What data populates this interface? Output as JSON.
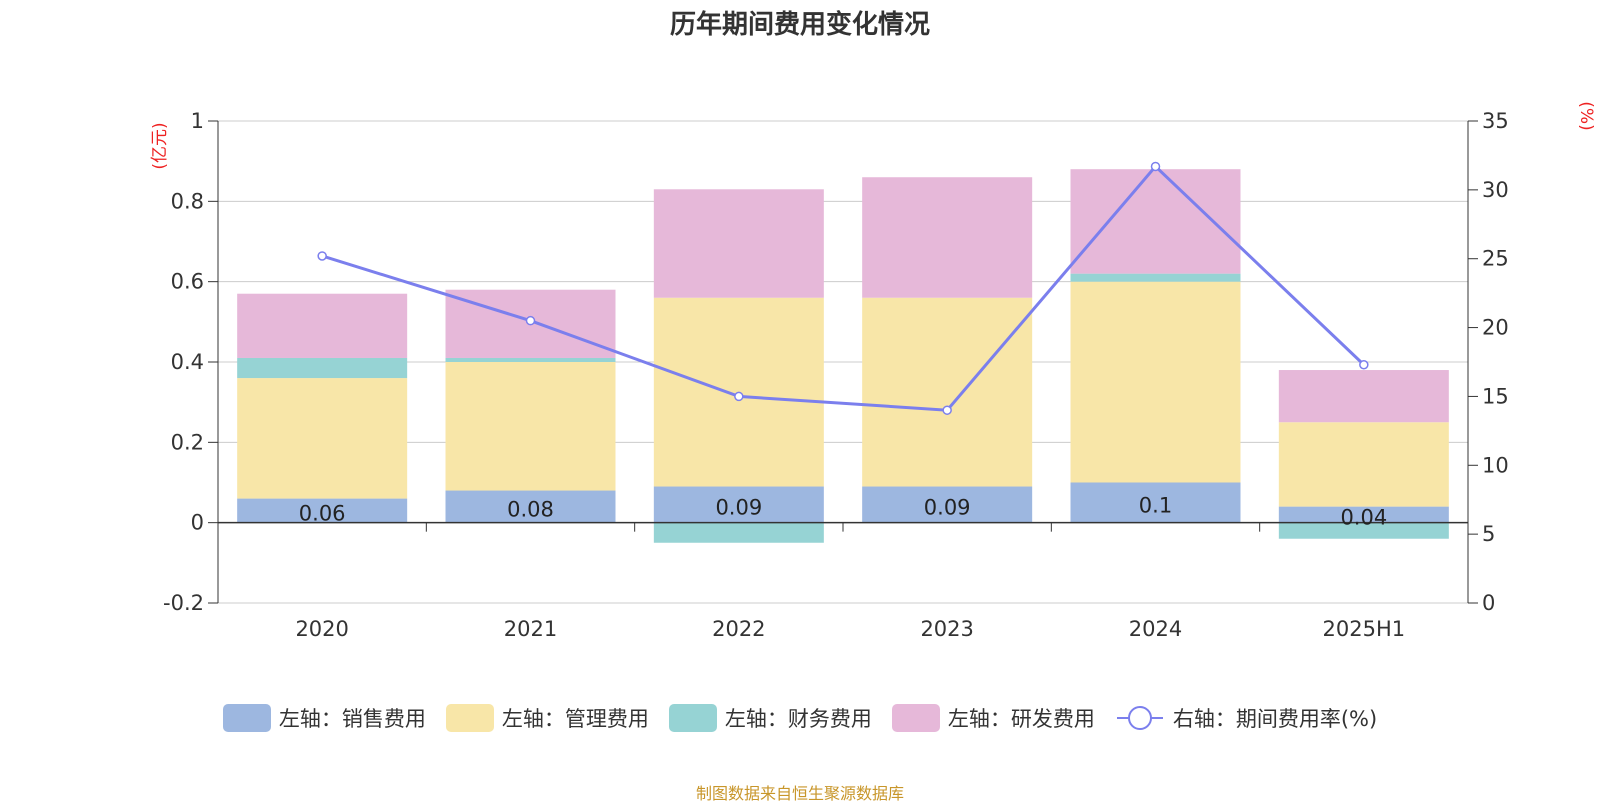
{
  "title": "历年期间费用变化情况",
  "source_note": "制图数据来自恒生聚源数据库",
  "left_axis_unit": "(亿元)",
  "right_axis_unit": "(%)",
  "legend": [
    {
      "label": "左轴：销售费用",
      "color": "#9db7e0",
      "kind": "bar"
    },
    {
      "label": "左轴：管理费用",
      "color": "#f8e6a8",
      "kind": "bar"
    },
    {
      "label": "左轴：财务费用",
      "color": "#96d3d4",
      "kind": "bar"
    },
    {
      "label": "左轴：研发费用",
      "color": "#e6b8d9",
      "kind": "bar"
    },
    {
      "label": "右轴：期间费用率(%)",
      "color": "#7b7fed",
      "kind": "line"
    }
  ],
  "chart_data": {
    "type": "bar",
    "stacked": true,
    "categories": [
      "2020",
      "2021",
      "2022",
      "2023",
      "2024",
      "2025H1"
    ],
    "series": [
      {
        "name": "左轴：销售费用",
        "axis": "left",
        "color": "#9db7e0",
        "values": [
          0.06,
          0.08,
          0.09,
          0.09,
          0.1,
          0.04
        ],
        "labels": [
          "0.06",
          "0.08",
          "0.09",
          "0.09",
          "0.1",
          "0.04"
        ]
      },
      {
        "name": "左轴：管理费用",
        "axis": "left",
        "color": "#f8e6a8",
        "values": [
          0.3,
          0.32,
          0.47,
          0.47,
          0.5,
          0.21
        ]
      },
      {
        "name": "左轴：财务费用",
        "axis": "left",
        "color": "#96d3d4",
        "values": [
          0.05,
          0.01,
          -0.05,
          0.0,
          0.02,
          -0.04
        ]
      },
      {
        "name": "左轴：研发费用",
        "axis": "left",
        "color": "#e6b8d9",
        "values": [
          0.16,
          0.17,
          0.27,
          0.3,
          0.26,
          0.13
        ]
      },
      {
        "name": "右轴：期间费用率(%)",
        "axis": "right",
        "type": "line",
        "color": "#7b7fed",
        "values": [
          25.2,
          20.5,
          15.0,
          14.0,
          31.7,
          17.3
        ]
      }
    ],
    "left_axis": {
      "min": -0.2,
      "max": 1,
      "ticks": [
        -0.2,
        0,
        0.2,
        0.4,
        0.6,
        0.8,
        1
      ],
      "tick_labels": [
        "-0.2",
        "0",
        "0.2",
        "0.4",
        "0.6",
        "0.8",
        "1"
      ]
    },
    "right_axis": {
      "min": 0,
      "max": 35,
      "ticks": [
        0,
        5,
        10,
        15,
        20,
        25,
        30,
        35
      ],
      "tick_labels": [
        "0",
        "5",
        "10",
        "15",
        "20",
        "25",
        "30",
        "35"
      ]
    },
    "grid": true,
    "legend_position": "bottom"
  }
}
